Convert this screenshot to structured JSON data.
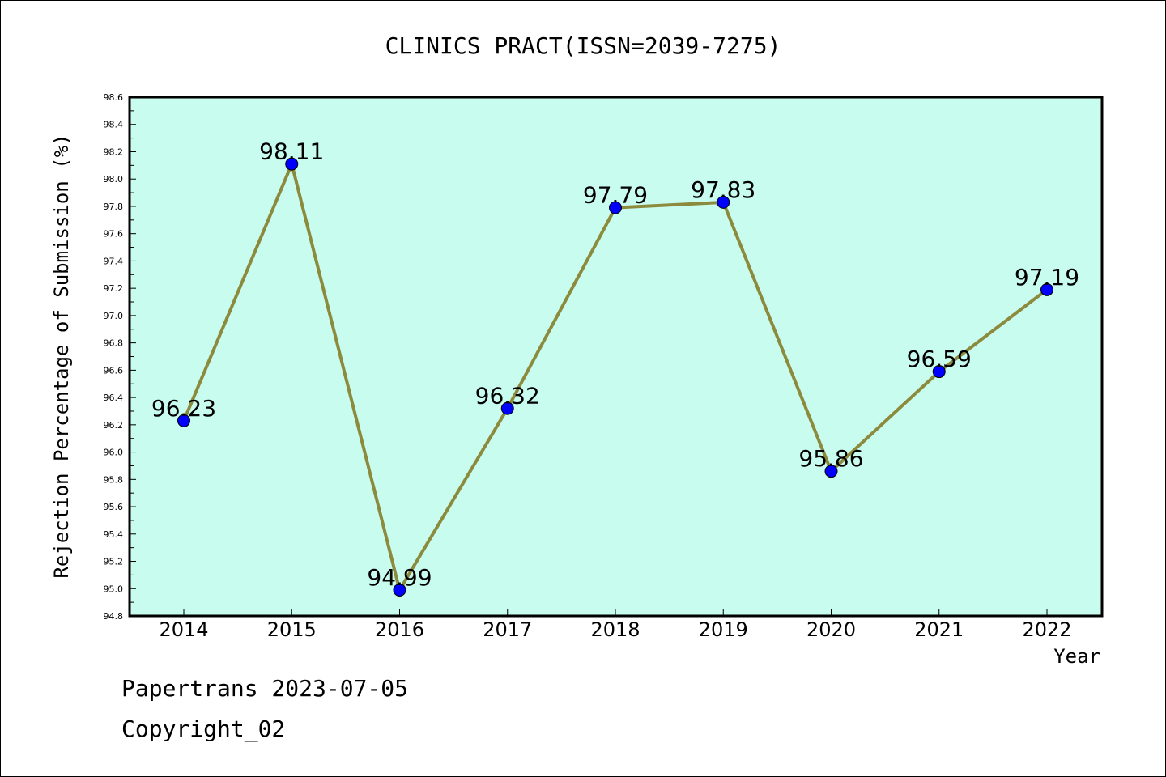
{
  "chart_data": {
    "type": "line",
    "title": "CLINICS PRACT(ISSN=2039-7275)",
    "xlabel": "Year",
    "ylabel": "Rejection Percentage of Submission (%)",
    "categories": [
      "2014",
      "2015",
      "2016",
      "2017",
      "2018",
      "2019",
      "2020",
      "2021",
      "2022"
    ],
    "series": [
      {
        "values": [
          96.23,
          98.11,
          94.99,
          96.32,
          97.79,
          97.83,
          95.86,
          96.59,
          97.19
        ]
      }
    ],
    "data_labels": [
      "96.23",
      "98.11",
      "94.99",
      "96.32",
      "97.79",
      "97.83",
      "95.86",
      "96.59",
      "97.19"
    ],
    "ylim": [
      94.8,
      98.6
    ],
    "yticks": [
      "94.8",
      "95.0",
      "95.2",
      "95.4",
      "95.6",
      "95.8",
      "96.0",
      "96.2",
      "96.4",
      "96.6",
      "96.8",
      "97.0",
      "97.2",
      "97.4",
      "97.6",
      "97.8",
      "98.0",
      "98.2",
      "98.4",
      "98.6"
    ],
    "grid": false,
    "colors": {
      "plot_background": "#c8fcee",
      "line": "#8c8a3c",
      "marker": "#0000ff"
    }
  },
  "footer": {
    "line1": "Papertrans 2023-07-05",
    "line2": "Copyright_02"
  }
}
